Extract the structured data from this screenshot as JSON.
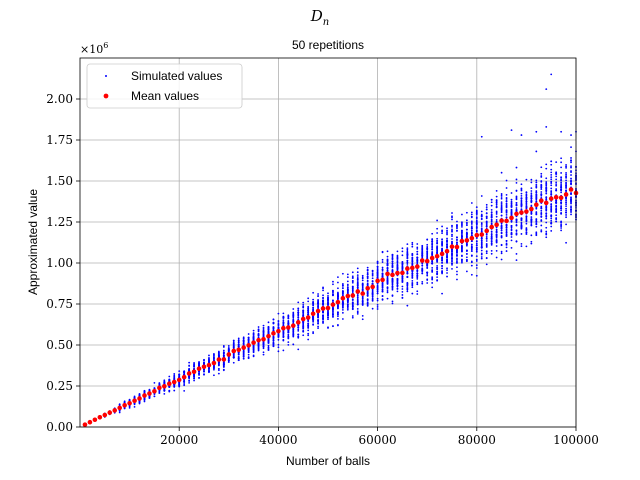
{
  "suptitle": "D",
  "suptitle_sub": "n",
  "chart_data": {
    "type": "scatter",
    "title": "50 repetitions",
    "xlabel": "Number of balls",
    "ylabel": "Approximated value",
    "y_multiplier_label": "×10",
    "y_multiplier_exp": "6",
    "xlim": [
      0,
      100000
    ],
    "ylim": [
      0,
      2.25
    ],
    "x_ticks": [
      20000,
      40000,
      60000,
      80000,
      100000
    ],
    "x_tick_labels": [
      "20000",
      "40000",
      "60000",
      "80000",
      "100000"
    ],
    "y_ticks": [
      0,
      0.25,
      0.5,
      0.75,
      1.0,
      1.25,
      1.5,
      1.75,
      2.0
    ],
    "y_tick_labels": [
      "0.00",
      "0.25",
      "0.50",
      "0.75",
      "1.00",
      "1.25",
      "1.50",
      "1.75",
      "2.00"
    ],
    "grid": true,
    "legend_position": "top-left",
    "repetitions_per_x": 50,
    "n_values": {
      "start": 1000,
      "stop": 100000,
      "step": 1000
    },
    "mean_model": {
      "type": "linear",
      "slope_per_ball": 1.46e-05
    },
    "spread_model": {
      "relative_std": 0.07
    },
    "outliers": [
      {
        "x": 81000,
        "y": 1.77
      },
      {
        "x": 87000,
        "y": 1.81
      },
      {
        "x": 89000,
        "y": 1.78
      },
      {
        "x": 92000,
        "y": 1.8
      },
      {
        "x": 94000,
        "y": 2.06
      },
      {
        "x": 94000,
        "y": 1.83
      },
      {
        "x": 95000,
        "y": 2.15
      },
      {
        "x": 97000,
        "y": 1.8
      },
      {
        "x": 99000,
        "y": 1.78
      },
      {
        "x": 100000,
        "y": 1.8
      }
    ],
    "series": [
      {
        "name": "Simulated values",
        "color": "#0000ff",
        "marker": "dot-small"
      },
      {
        "name": "Mean values",
        "color": "#ff0000",
        "marker": "dot-large"
      }
    ]
  }
}
